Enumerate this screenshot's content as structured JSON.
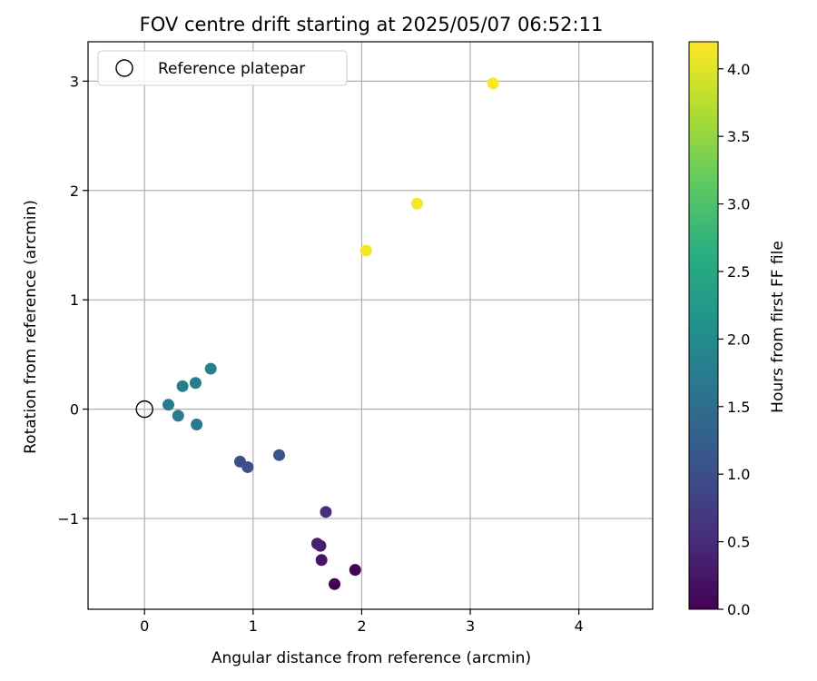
{
  "chart_data": {
    "type": "scatter",
    "title": "FOV centre drift starting at 2025/05/07 06:52:11",
    "xlabel": "Angular distance from reference (arcmin)",
    "ylabel": "Rotation from reference (arcmin)",
    "xlim": [
      -0.52,
      4.68
    ],
    "ylim": [
      -1.83,
      3.36
    ],
    "xticks": [
      0,
      1,
      2,
      3,
      4
    ],
    "yticks": [
      -1,
      0,
      1,
      2,
      3
    ],
    "grid": true,
    "legend": {
      "location": "upper-left",
      "entries": [
        "Reference platepar"
      ]
    },
    "reference": {
      "x": 0,
      "y": 0,
      "label": "Reference platepar"
    },
    "colorbar": {
      "label": "Hours from first FF file",
      "colormap": "viridis",
      "range": [
        0.0,
        4.2
      ],
      "ticks": [
        0.0,
        0.5,
        1.0,
        1.5,
        2.0,
        2.5,
        3.0,
        3.5,
        4.0
      ]
    },
    "points": [
      {
        "x": 1.75,
        "y": -1.6,
        "hours": 0.0
      },
      {
        "x": 1.94,
        "y": -1.47,
        "hours": 0.05
      },
      {
        "x": 1.63,
        "y": -1.38,
        "hours": 0.25
      },
      {
        "x": 1.62,
        "y": -1.25,
        "hours": 0.35
      },
      {
        "x": 1.59,
        "y": -1.23,
        "hours": 0.38
      },
      {
        "x": 1.67,
        "y": -0.94,
        "hours": 0.55
      },
      {
        "x": 0.88,
        "y": -0.48,
        "hours": 1.0
      },
      {
        "x": 0.95,
        "y": -0.53,
        "hours": 1.02
      },
      {
        "x": 1.24,
        "y": -0.42,
        "hours": 1.05
      },
      {
        "x": 0.48,
        "y": -0.14,
        "hours": 1.7
      },
      {
        "x": 0.31,
        "y": -0.06,
        "hours": 1.72
      },
      {
        "x": 0.22,
        "y": 0.04,
        "hours": 1.75
      },
      {
        "x": 0.35,
        "y": 0.21,
        "hours": 1.78
      },
      {
        "x": 0.47,
        "y": 0.24,
        "hours": 1.8
      },
      {
        "x": 0.61,
        "y": 0.37,
        "hours": 1.82
      },
      {
        "x": 2.04,
        "y": 1.45,
        "hours": 4.15
      },
      {
        "x": 2.51,
        "y": 1.88,
        "hours": 4.17
      },
      {
        "x": 3.21,
        "y": 2.98,
        "hours": 4.2
      }
    ]
  }
}
